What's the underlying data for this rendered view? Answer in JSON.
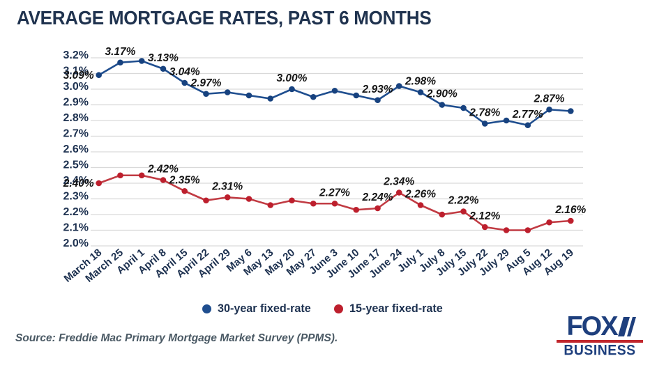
{
  "title": "AVERAGE MORTGAGE RATES, PAST 6 MONTHS",
  "source": "Source: Freddie Mac Primary Mortgage Market Survey (PPMS).",
  "logo": {
    "line1": "FOX",
    "line2": "BUSINESS"
  },
  "colors": {
    "navy_text": "#1d3150",
    "blue_series": "#1f4e8f",
    "blue_dot": "#17427f",
    "red_series": "#c13b43",
    "red_dot": "#bd1f2d",
    "gridline": "#d9d9d9",
    "data_label": "#151515",
    "logo_navy": "#1e3f7d",
    "logo_red": "#c1272d"
  },
  "legend": {
    "items": [
      {
        "label": "30-year fixed-rate",
        "color": "#1f4e8f"
      },
      {
        "label": "15-year fixed-rate",
        "color": "#bd1f2d"
      }
    ]
  },
  "chart_data": {
    "type": "line",
    "title": "AVERAGE MORTGAGE RATES, PAST 6 MONTHS",
    "xlabel": "",
    "ylabel": "",
    "grid": true,
    "legend_position": "bottom",
    "ylim": [
      2.0,
      3.2
    ],
    "yticks": [
      3.2,
      3.1,
      3.0,
      2.9,
      2.8,
      2.7,
      2.6,
      2.5,
      2.4,
      2.3,
      2.2,
      2.1,
      2.0
    ],
    "ytick_labels": [
      "3.2%",
      "3.1%",
      "3.0%",
      "2.9%",
      "2.8%",
      "2.7%",
      "2.6%",
      "2.5%",
      "2.4%",
      "2.3%",
      "2.2%",
      "2.1%",
      "2.0%"
    ],
    "categories": [
      "March 18",
      "March 25",
      "April 1",
      "April 8",
      "April 15",
      "April 22",
      "April 29",
      "May 6",
      "May 13",
      "May 20",
      "May 27",
      "June 3",
      "June 10",
      "June 17",
      "June 24",
      "July 1",
      "July 8",
      "July 15",
      "July 22",
      "July 29",
      "Aug 5",
      "Aug 12",
      "Aug 19"
    ],
    "series": [
      {
        "name": "30-year fixed-rate",
        "color": "#1f4e8f",
        "dot_color": "#17427f",
        "values": [
          3.09,
          3.17,
          3.18,
          3.13,
          3.04,
          2.97,
          2.98,
          2.96,
          2.94,
          3.0,
          2.95,
          2.99,
          2.96,
          2.93,
          3.02,
          2.98,
          2.9,
          2.88,
          2.78,
          2.8,
          2.77,
          2.87,
          2.86
        ],
        "point_labels": {
          "0": "3.09%",
          "1": "3.17%",
          "3": "3.13%",
          "4": "3.04%",
          "5": "2.97%",
          "9": "3.00%",
          "13": "2.93%",
          "15": "2.98%",
          "16": "2.90%",
          "18": "2.78%",
          "20": "2.77%",
          "21": "2.87%"
        }
      },
      {
        "name": "15-year fixed-rate",
        "color": "#c13b43",
        "dot_color": "#bd1f2d",
        "values": [
          2.4,
          2.45,
          2.45,
          2.42,
          2.35,
          2.29,
          2.31,
          2.3,
          2.26,
          2.29,
          2.27,
          2.27,
          2.23,
          2.24,
          2.34,
          2.26,
          2.2,
          2.22,
          2.12,
          2.1,
          2.1,
          2.15,
          2.16
        ],
        "point_labels": {
          "0": "2.40%",
          "3": "2.42%",
          "4": "2.35%",
          "6": "2.31%",
          "11": "2.27%",
          "13": "2.24%",
          "14": "2.34%",
          "15": "2.26%",
          "17": "2.22%",
          "18": "2.12%",
          "22": "2.16%"
        }
      }
    ]
  }
}
